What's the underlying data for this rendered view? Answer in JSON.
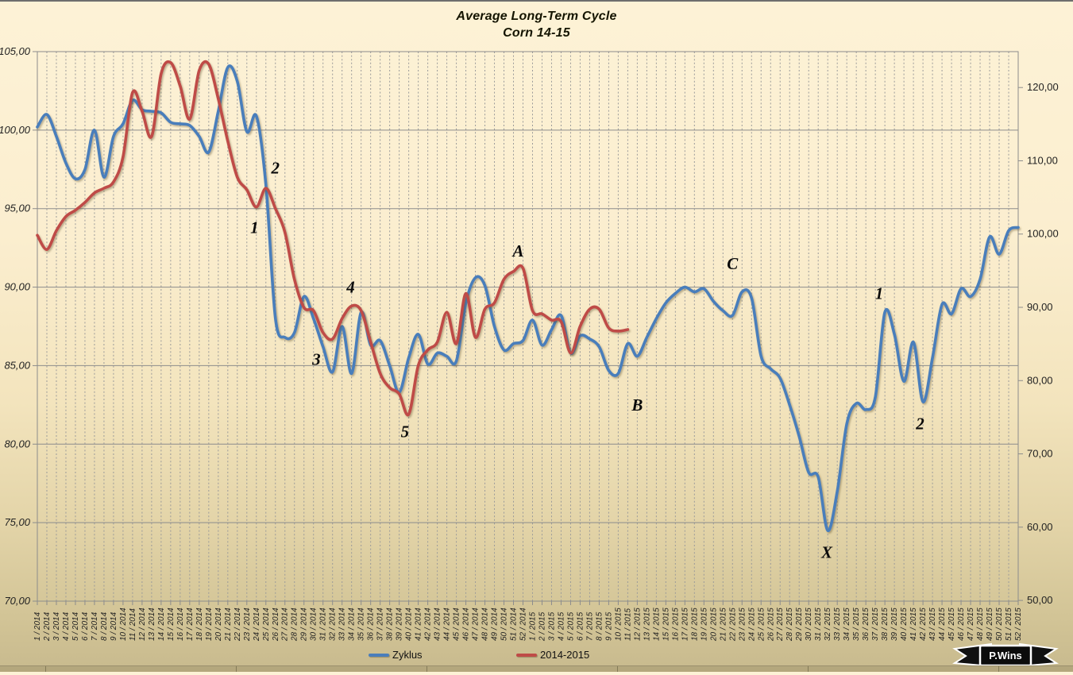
{
  "title": {
    "line1": "Average Long-Term Cycle",
    "line2": "Corn 14-15"
  },
  "legend": {
    "items": [
      {
        "label": "Zyklus"
      },
      {
        "label": "2014-2015"
      }
    ]
  },
  "ribbon": {
    "label": "P.Wins"
  },
  "colors": {
    "zyklus_line": "#4a7ebb",
    "series_2014_2015_line": "#bf4b47",
    "grid": "#8c8c8c",
    "grid_dashed": "#9a9a9a",
    "background_top": "#fdf2d6",
    "background_bottom": "#c8ba8e"
  },
  "chart_data": {
    "type": "line",
    "title": "Average Long-Term Cycle",
    "subtitle": "Corn 14-15",
    "grid": true,
    "legend_position": "bottom",
    "left_axis": {
      "min": 70,
      "max": 105,
      "tick_step": 5,
      "tick_labels": [
        "105,00",
        "100,00",
        "95,00",
        "90,00",
        "85,00",
        "80,00",
        "75,00",
        "70,00"
      ],
      "tick_values": [
        105,
        100,
        95,
        90,
        85,
        80,
        75,
        70
      ]
    },
    "right_axis": {
      "top_value": 124.9,
      "bottom_value": 49.9,
      "tick_labels": [
        "120,00",
        "110,00",
        "100,00",
        "90,00",
        "80,00",
        "70,00",
        "60,00",
        "50,00"
      ],
      "tick_values": [
        120,
        110,
        100,
        90,
        80,
        70,
        60,
        50
      ]
    },
    "x_labels": [
      "1 / 2014",
      "2 / 2014",
      "3 / 2014",
      "4 / 2014",
      "5 / 2014",
      "6 / 2014",
      "7 / 2014",
      "8 / 2014",
      "9 / 2014",
      "10 / 2014",
      "11 / 2014",
      "12 / 2014",
      "13 / 2014",
      "14 / 2014",
      "15 / 2014",
      "16 / 2014",
      "17 / 2014",
      "18 / 2014",
      "19 / 2014",
      "20 / 2014",
      "21 / 2014",
      "22 / 2014",
      "23 / 2014",
      "24 / 2014",
      "25 / 2014",
      "26 / 2014",
      "27 / 2014",
      "28 / 2014",
      "29 / 2014",
      "30 / 2014",
      "31 / 2014",
      "32 / 2014",
      "33 / 2014",
      "34 / 2014",
      "35 / 2014",
      "36 / 2014",
      "37 / 2014",
      "38 / 2014",
      "39 / 2014",
      "40 / 2014",
      "41 / 2014",
      "42 / 2014",
      "43 / 2014",
      "44 / 2014",
      "45 / 2014",
      "46 / 2014",
      "47 / 2014",
      "48 / 2014",
      "49 / 2014",
      "50 / 2014",
      "51 / 2014",
      "52 / 2014",
      "1 / 2015",
      "2 / 2015",
      "3 / 2015",
      "4 / 2015",
      "5 / 2015",
      "6 / 2015",
      "7 / 2015",
      "8 / 2015",
      "9 / 2015",
      "10 / 2015",
      "11 / 2015",
      "12 / 2015",
      "13 / 2015",
      "14 / 2015",
      "15 / 2015",
      "16 / 2015",
      "17 / 2015",
      "18 / 2015",
      "19 / 2015",
      "20 / 2015",
      "21 / 2015",
      "22 / 2015",
      "23 / 2015",
      "24 / 2015",
      "25 / 2015",
      "26 / 2015",
      "27 / 2015",
      "28 / 2015",
      "29 / 2015",
      "30 / 2015",
      "31 / 2015",
      "32 / 2015",
      "33 / 2015",
      "34 / 2015",
      "35 / 2015",
      "36 / 2015",
      "37 / 2015",
      "38 / 2015",
      "39 / 2015",
      "40 / 2015",
      "41 / 2015",
      "42 / 2015",
      "43 / 2015",
      "44 / 2015",
      "45 / 2015",
      "46 / 2015",
      "47 / 2015",
      "48 / 2015",
      "49 / 2015",
      "50 / 2015",
      "51 / 2015",
      "52 / 2015"
    ],
    "series": [
      {
        "name": "Zyklus",
        "color": "#4a7ebb",
        "axis": "left",
        "start_week": 1,
        "values": [
          100.2,
          101.0,
          99.6,
          97.9,
          96.9,
          97.5,
          100.0,
          97.0,
          99.6,
          100.4,
          101.9,
          101.3,
          101.2,
          101.1,
          100.5,
          100.4,
          100.3,
          99.6,
          98.6,
          101.2,
          104.0,
          103.1,
          99.9,
          100.9,
          96.5,
          88.0,
          86.8,
          87.1,
          89.4,
          88.0,
          86.2,
          84.6,
          87.5,
          84.5,
          88.4,
          86.3,
          86.6,
          85.0,
          83.3,
          85.5,
          87.0,
          85.1,
          85.8,
          85.6,
          85.3,
          89.0,
          90.6,
          90.1,
          87.5,
          86.0,
          86.4,
          86.6,
          87.9,
          86.3,
          87.3,
          88.2,
          85.8,
          86.9,
          86.7,
          86.2,
          84.7,
          84.5,
          86.4,
          85.6,
          86.8,
          88.0,
          89.0,
          89.6,
          90.0,
          89.7,
          89.9,
          89.1,
          88.5,
          88.2,
          89.7,
          89.3,
          85.6,
          84.8,
          84.2,
          82.5,
          80.5,
          78.2,
          77.9,
          74.5,
          77.0,
          81.3,
          82.6,
          82.2,
          83.0,
          88.4,
          87.0,
          84.0,
          86.5,
          82.7,
          85.5,
          88.9,
          88.3,
          89.9,
          89.4,
          90.5,
          93.2,
          92.1,
          93.6,
          93.8
        ]
      },
      {
        "name": "2014-2015",
        "color": "#bf4b47",
        "axis": "left",
        "start_week": 1,
        "values": [
          93.3,
          92.4,
          93.6,
          94.5,
          94.9,
          95.4,
          96.0,
          96.3,
          96.7,
          98.3,
          102.4,
          101.2,
          99.6,
          103.6,
          104.3,
          102.8,
          100.7,
          103.8,
          104.2,
          102.0,
          99.3,
          97.0,
          96.2,
          95.1,
          96.3,
          95.0,
          93.5,
          90.5,
          88.7,
          88.5,
          87.1,
          86.7,
          88.0,
          88.8,
          88.5,
          86.5,
          84.5,
          83.6,
          83.2,
          81.9,
          85.0,
          86.0,
          86.5,
          88.4,
          86.4,
          89.6,
          86.8,
          88.6,
          89.0,
          90.5,
          91.0,
          91.2,
          88.5,
          88.3,
          87.9,
          87.8,
          85.8,
          87.5,
          88.6,
          88.6,
          87.4,
          87.2,
          87.3
        ]
      }
    ],
    "annotations": [
      {
        "text": "1",
        "week": 23.8,
        "value": 93.8
      },
      {
        "text": "2",
        "week": 26.0,
        "value": 97.6
      },
      {
        "text": "3",
        "week": 30.3,
        "value": 85.4
      },
      {
        "text": "4",
        "week": 33.9,
        "value": 90.0
      },
      {
        "text": "5",
        "week": 39.6,
        "value": 80.8
      },
      {
        "text": "A",
        "week": 51.5,
        "value": 92.3
      },
      {
        "text": "B",
        "week": 64.0,
        "value": 82.5
      },
      {
        "text": "C",
        "week": 74.0,
        "value": 91.5
      },
      {
        "text": "X",
        "week": 83.9,
        "value": 73.1
      },
      {
        "text": "1",
        "week": 89.4,
        "value": 89.6
      },
      {
        "text": "2",
        "week": 93.7,
        "value": 81.3
      }
    ]
  }
}
